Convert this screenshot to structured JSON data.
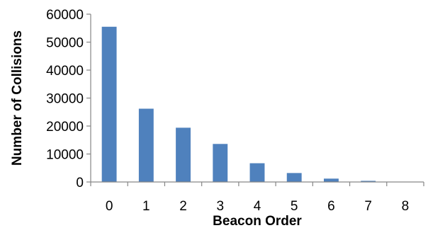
{
  "chart_data": {
    "type": "bar",
    "xlabel": "Beacon Order",
    "ylabel": "Number of Collisions",
    "categories": [
      "0",
      "1",
      "2",
      "3",
      "4",
      "5",
      "6",
      "7",
      "8"
    ],
    "values": [
      55500,
      26200,
      19400,
      13600,
      6700,
      3200,
      1200,
      400,
      0
    ],
    "ylim": [
      0,
      60000
    ],
    "yticks": [
      "0",
      "10000",
      "20000",
      "30000",
      "40000",
      "50000",
      "60000"
    ],
    "grid": false,
    "legend": "none",
    "colors": {
      "bar": "#4f81bd"
    }
  }
}
